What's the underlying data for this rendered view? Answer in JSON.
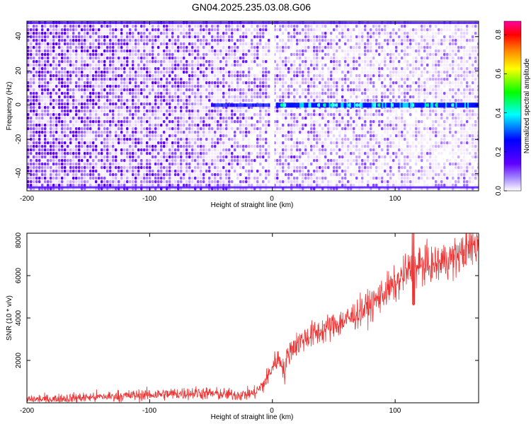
{
  "title": "GN04.2025.235.03.08.G06",
  "chart_data": [
    {
      "type": "heatmap",
      "xlabel": "Height of straight line (km)",
      "ylabel": "Frequency (Hz)",
      "xlim": [
        -200,
        168
      ],
      "ylim": [
        -50,
        49
      ],
      "x_ticks": [
        "-200",
        "-100",
        "0",
        "100"
      ],
      "y_ticks": [
        "-40",
        "-20",
        "0",
        "20",
        "40"
      ],
      "colorbar": {
        "label": "Normalized spectral amplitude",
        "range": [
          0.0,
          0.87
        ],
        "ticks": [
          "0.0",
          "0.2",
          "0.4",
          "0.6",
          "0.8"
        ],
        "colors": [
          "#ffffff",
          "#a080ff",
          "#6000ff",
          "#0000ff",
          "#00ffff",
          "#00ff00",
          "#ffff00",
          "#ff8000",
          "#ff0000",
          "#ff00a0"
        ]
      },
      "features": {
        "line_frequency_hz": 0,
        "line_starts_km": -50,
        "edge_lines_hz": [
          48,
          -48
        ],
        "blank_column_km": 0
      }
    },
    {
      "type": "line",
      "xlabel": "Height of straight line (km)",
      "ylabel": "SNR (10 * v/v)",
      "xlim": [
        -200,
        168
      ],
      "ylim": [
        0,
        8000
      ],
      "x_ticks": [
        "-200",
        "-100",
        "0",
        "100"
      ],
      "y_ticks": [
        "2000",
        "4000",
        "6000",
        "8000"
      ],
      "color": "#ee3333",
      "series": [
        {
          "x": [
            -200,
            -180,
            -160,
            -140,
            -120,
            -100,
            -80,
            -60,
            -40,
            -25,
            -15,
            -8,
            -3,
            0,
            4,
            8,
            10,
            12,
            16,
            25,
            40,
            60,
            80,
            95,
            100,
            108,
            113,
            115,
            117,
            120,
            130,
            140,
            150,
            160,
            168
          ],
          "y": [
            150,
            180,
            230,
            280,
            330,
            380,
            420,
            470,
            400,
            380,
            450,
            800,
            1300,
            1700,
            2100,
            1900,
            1300,
            2200,
            2600,
            3000,
            3400,
            3900,
            4600,
            5400,
            5500,
            6100,
            6300,
            6200,
            6300,
            6500,
            6450,
            6700,
            6900,
            7300,
            7500
          ]
        }
      ]
    }
  ]
}
